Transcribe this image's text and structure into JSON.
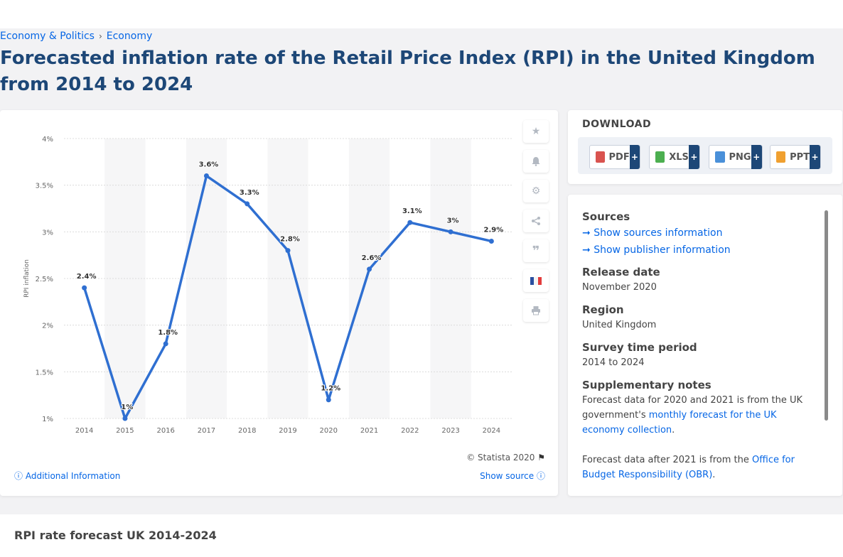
{
  "breadcrumb": {
    "item1": "Economy & Politics",
    "separator": "›",
    "item2": "Economy"
  },
  "title": "Forecasted inflation rate of the Retail Price Index (RPI) in the United Kingdom from 2014 to 2024",
  "chart_data": {
    "type": "line",
    "title": "",
    "xlabel": "",
    "ylabel": "RPI inflation",
    "categories": [
      "2014",
      "2015",
      "2016",
      "2017",
      "2018",
      "2019",
      "2020",
      "2021",
      "2022",
      "2023",
      "2024"
    ],
    "values": [
      2.4,
      1.0,
      1.8,
      3.6,
      3.3,
      2.8,
      1.2,
      2.6,
      3.1,
      3.0,
      2.9
    ],
    "data_labels": [
      "2.4%",
      "1%",
      "1.8%",
      "3.6%",
      "3.3%",
      "2.8%",
      "1.2%",
      "2.6%",
      "3.1%",
      "3%",
      "2.9%"
    ],
    "y_ticks": [
      1,
      1.5,
      2,
      2.5,
      3,
      3.5,
      4
    ],
    "y_tick_labels": [
      "1%",
      "1.5%",
      "2%",
      "2.5%",
      "3%",
      "3.5%",
      "4%"
    ],
    "ylim": [
      1,
      4
    ],
    "grid": true,
    "line_color": "#2f6fd1"
  },
  "tools": [
    "star-icon",
    "bell-icon",
    "gear-icon",
    "share-icon",
    "quote-icon",
    "flag-icon",
    "print-icon"
  ],
  "copyright": "© Statista 2020",
  "additional_info": "Additional Information",
  "show_source": "Show source",
  "download": {
    "title": "DOWNLOAD",
    "buttons": [
      {
        "label": "PDF",
        "color": "#d9534f"
      },
      {
        "label": "XLS",
        "color": "#4caf50"
      },
      {
        "label": "PNG",
        "color": "#4a90d9"
      },
      {
        "label": "PPT",
        "color": "#f0a030"
      }
    ],
    "plus": "+"
  },
  "info": {
    "sources_h": "Sources",
    "show_sources": "Show sources information",
    "show_publisher": "Show publisher information",
    "release_h": "Release date",
    "release_v": "November 2020",
    "region_h": "Region",
    "region_v": "United Kingdom",
    "period_h": "Survey time period",
    "period_v": "2014 to 2024",
    "notes_h": "Supplementary notes",
    "notes_1a": "Forecast data for 2020 and 2021 is from the UK government's ",
    "notes_1link": "monthly forecast for the UK economy collection",
    "notes_1b": ".",
    "notes_2a": "Forecast data after 2021 is from the ",
    "notes_2link": "Office for Budget Responsibility (OBR)",
    "notes_2b": "."
  },
  "bottom_title": "RPI rate forecast UK 2014-2024"
}
